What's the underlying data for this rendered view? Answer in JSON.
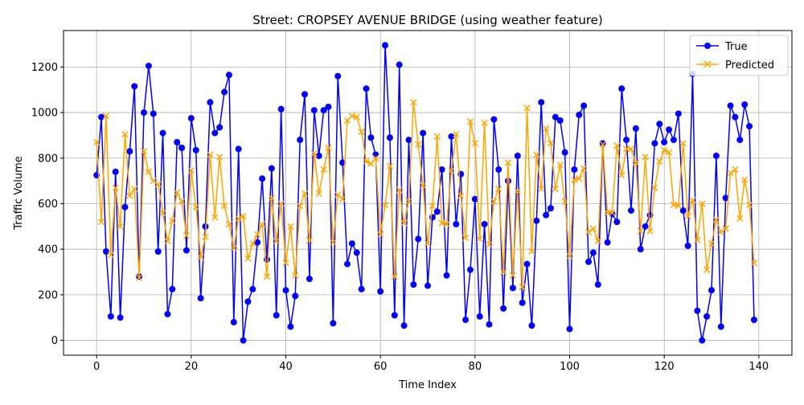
{
  "chart_data": {
    "type": "line",
    "title": "Street: CROPSEY AVENUE BRIDGE (using weather feature)",
    "xlabel": "Time Index",
    "ylabel": "Traffic Volume",
    "xlim": [
      -7,
      147
    ],
    "ylim": [
      -65,
      1360
    ],
    "xticks": [
      0,
      20,
      40,
      60,
      80,
      100,
      120,
      140
    ],
    "yticks": [
      0,
      200,
      400,
      600,
      800,
      1000,
      1200
    ],
    "grid": true,
    "legend_position": "upper right",
    "series": [
      {
        "name": "True",
        "color": "#0000ff",
        "marker": "circle",
        "values": [
          725,
          980,
          390,
          105,
          740,
          100,
          585,
          830,
          1115,
          280,
          1000,
          1205,
          995,
          390,
          910,
          115,
          225,
          870,
          845,
          395,
          975,
          835,
          185,
          500,
          1045,
          910,
          935,
          1090,
          1165,
          80,
          840,
          0,
          170,
          225,
          430,
          710,
          355,
          755,
          110,
          1015,
          220,
          60,
          195,
          880,
          1080,
          270,
          1010,
          810,
          1010,
          1025,
          75,
          1160,
          780,
          335,
          425,
          385,
          225,
          1105,
          890,
          815,
          215,
          1295,
          890,
          110,
          1210,
          65,
          880,
          245,
          445,
          910,
          240,
          540,
          565,
          750,
          285,
          895,
          510,
          730,
          90,
          310,
          620,
          105,
          510,
          70,
          970,
          750,
          140,
          700,
          230,
          810,
          165,
          335,
          65,
          525,
          1045,
          550,
          580,
          980,
          965,
          825,
          50,
          750,
          990,
          1030,
          345,
          385,
          245,
          865,
          430,
          555,
          520,
          1105,
          880,
          570,
          930,
          400,
          500,
          550,
          865,
          950,
          870,
          925,
          880,
          995,
          570,
          415,
          1170,
          130,
          0,
          105,
          220,
          810,
          60,
          625,
          1030,
          980,
          880,
          1035,
          940,
          90
        ]
      },
      {
        "name": "Predicted",
        "color": "#ffa500",
        "marker": "x",
        "values": [
          870,
          520,
          985,
          375,
          670,
          500,
          905,
          635,
          665,
          275,
          830,
          740,
          700,
          685,
          560,
          435,
          525,
          650,
          610,
          460,
          745,
          585,
          365,
          455,
          815,
          540,
          805,
          590,
          510,
          405,
          535,
          545,
          360,
          425,
          465,
          510,
          280,
          625,
          435,
          600,
          340,
          500,
          285,
          590,
          645,
          440,
          820,
          645,
          750,
          845,
          430,
          640,
          620,
          965,
          985,
          980,
          915,
          785,
          775,
          800,
          465,
          595,
          765,
          280,
          660,
          515,
          610,
          1045,
          860,
          680,
          425,
          590,
          895,
          515,
          510,
          745,
          905,
          635,
          450,
          960,
          865,
          445,
          955,
          420,
          610,
          665,
          300,
          780,
          285,
          655,
          235,
          1020,
          390,
          815,
          665,
          930,
          865,
          665,
          770,
          610,
          370,
          705,
          710,
          755,
          475,
          490,
          435,
          860,
          560,
          560,
          855,
          725,
          840,
          840,
          780,
          480,
          805,
          480,
          670,
          785,
          835,
          825,
          595,
          590,
          865,
          545,
          615,
          440,
          600,
          310,
          425,
          530,
          475,
          490,
          735,
          750,
          535,
          705,
          595,
          340
        ]
      }
    ]
  }
}
